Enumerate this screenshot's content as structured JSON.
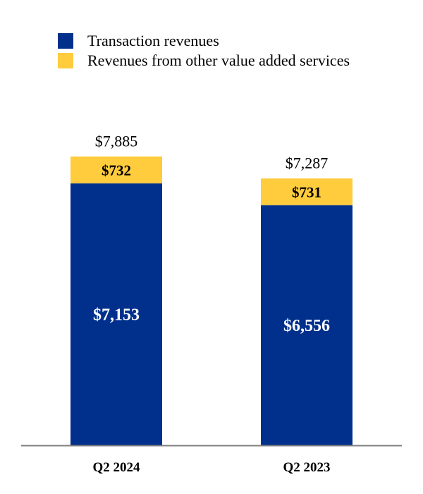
{
  "colors": {
    "transaction": "#00308C",
    "other": "#FFCC3E",
    "axis": "#808080",
    "text": "#000000",
    "inner_text": "#ffffff"
  },
  "chart_data": {
    "type": "bar",
    "stacked": true,
    "categories": [
      "Q2 2024",
      "Q2 2023"
    ],
    "series": [
      {
        "name": "Transaction revenues",
        "values": [
          7153,
          6556
        ],
        "labels": [
          "$7,153",
          "$6,556"
        ]
      },
      {
        "name": "Revenues from other value added services",
        "values": [
          732,
          731
        ],
        "labels": [
          "$732",
          "$731"
        ]
      }
    ],
    "totals": [
      7885,
      7287
    ],
    "total_labels": [
      "$7,885",
      "$7,287"
    ],
    "ylim": [
      0,
      11000
    ],
    "legend_position": "top-left",
    "grid": false
  }
}
